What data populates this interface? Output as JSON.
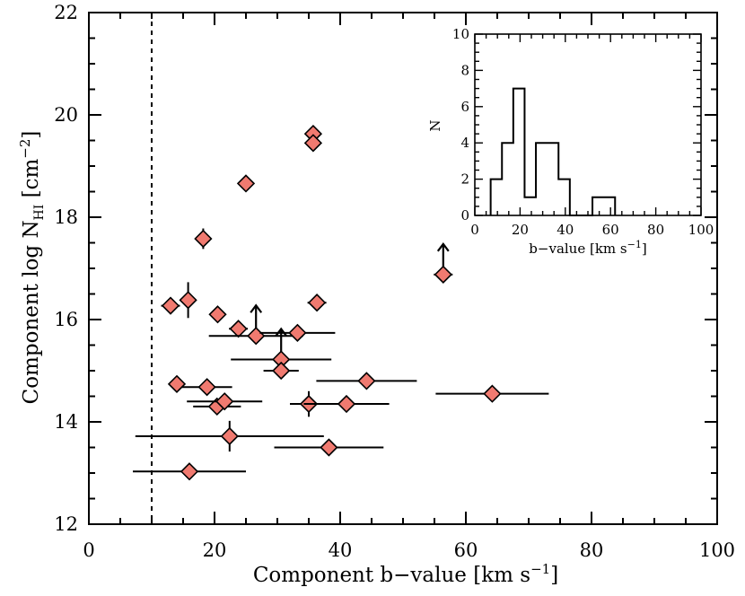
{
  "chart_data": [
    {
      "type": "scatter",
      "name": "main",
      "xlabel": "Component b−value  [km s",
      "xlabel_unit_sup": "−1",
      "xlabel_suffix": "]",
      "ylabel": "Component log N",
      "ylabel_sub": "HI",
      "ylabel_unit": " [cm",
      "ylabel_sup": "−2",
      "ylabel_suffix": "]",
      "xlim": [
        0,
        100
      ],
      "ylim": [
        12,
        22
      ],
      "xticks": [
        0,
        20,
        40,
        60,
        80,
        100
      ],
      "yticks": [
        12,
        14,
        16,
        18,
        20,
        22
      ],
      "xtick_labels": [
        "0",
        "20",
        "40",
        "60",
        "80",
        "100"
      ],
      "ytick_labels": [
        "12",
        "14",
        "16",
        "18",
        "20",
        "22"
      ],
      "reference_line_x": 10,
      "marker_color": "#f07a70",
      "points": [
        {
          "b": 13.0,
          "logN": 16.27,
          "b_err": 1.5,
          "n_err": 0.0,
          "lower_limit": false
        },
        {
          "b": 15.8,
          "logN": 16.38,
          "b_err": 1.0,
          "n_err": 0.35,
          "lower_limit": false
        },
        {
          "b": 18.2,
          "logN": 17.58,
          "b_err": 0.0,
          "n_err": 0.2,
          "lower_limit": false
        },
        {
          "b": 20.5,
          "logN": 16.1,
          "b_err": 1.0,
          "n_err": 0.0,
          "lower_limit": false
        },
        {
          "b": 25.0,
          "logN": 18.66,
          "b_err": 0.8,
          "n_err": 0.0,
          "lower_limit": false
        },
        {
          "b": 23.8,
          "logN": 15.82,
          "b_err": 1.5,
          "n_err": 0.0,
          "lower_limit": false
        },
        {
          "b": 26.6,
          "logN": 15.68,
          "b_err": 7.5,
          "n_err": 0.0,
          "lower_limit": true
        },
        {
          "b": 30.6,
          "logN": 15.22,
          "b_err": 8.0,
          "n_err": 0.0,
          "lower_limit": true
        },
        {
          "b": 30.6,
          "logN": 15.0,
          "b_err": 2.8,
          "n_err": 0.0,
          "lower_limit": false
        },
        {
          "b": 33.2,
          "logN": 15.74,
          "b_err": 6.0,
          "n_err": 0.0,
          "lower_limit": false
        },
        {
          "b": 35.7,
          "logN": 19.63,
          "b_err": 0.0,
          "n_err": 0.0,
          "lower_limit": false
        },
        {
          "b": 35.7,
          "logN": 19.45,
          "b_err": 0.0,
          "n_err": 0.0,
          "lower_limit": false
        },
        {
          "b": 36.3,
          "logN": 16.33,
          "b_err": 1.5,
          "n_err": 0.0,
          "lower_limit": false
        },
        {
          "b": 14.0,
          "logN": 14.74,
          "b_err": 0.8,
          "n_err": 0.0,
          "lower_limit": false
        },
        {
          "b": 18.8,
          "logN": 14.68,
          "b_err": 4.0,
          "n_err": 0.0,
          "lower_limit": false
        },
        {
          "b": 20.4,
          "logN": 14.3,
          "b_err": 3.8,
          "n_err": 0.0,
          "lower_limit": false
        },
        {
          "b": 21.6,
          "logN": 14.4,
          "b_err": 6.0,
          "n_err": 0.0,
          "lower_limit": false
        },
        {
          "b": 22.4,
          "logN": 13.72,
          "b_err": 15.0,
          "n_err": 0.3,
          "lower_limit": false
        },
        {
          "b": 16.0,
          "logN": 13.03,
          "b_err": 9.0,
          "n_err": 0.0,
          "lower_limit": false
        },
        {
          "b": 35.0,
          "logN": 14.35,
          "b_err": 3.0,
          "n_err": 0.25,
          "lower_limit": false
        },
        {
          "b": 41.0,
          "logN": 14.35,
          "b_err": 6.8,
          "n_err": 0.0,
          "lower_limit": false
        },
        {
          "b": 44.2,
          "logN": 14.8,
          "b_err": 8.0,
          "n_err": 0.0,
          "lower_limit": false
        },
        {
          "b": 38.2,
          "logN": 13.5,
          "b_err": 8.7,
          "n_err": 0.0,
          "lower_limit": false
        },
        {
          "b": 56.4,
          "logN": 16.88,
          "b_err": 1.5,
          "n_err": 0.0,
          "lower_limit": true
        },
        {
          "b": 64.2,
          "logN": 14.55,
          "b_err": 9.0,
          "n_err": 0.0,
          "lower_limit": false
        }
      ]
    },
    {
      "type": "histogram",
      "name": "inset",
      "xlabel": "b−value [km s",
      "xlabel_sup": "−1",
      "xlabel_suffix": "]",
      "ylabel": "N",
      "xlim": [
        0,
        100
      ],
      "ylim": [
        0,
        10
      ],
      "xticks": [
        0,
        20,
        40,
        60,
        80,
        100
      ],
      "yticks": [
        0,
        2,
        4,
        6,
        8,
        10
      ],
      "xtick_labels": [
        "0",
        "20",
        "40",
        "60",
        "80",
        "100"
      ],
      "ytick_labels": [
        "0",
        "2",
        "4",
        "6",
        "8",
        "10"
      ],
      "bin_edges": [
        7,
        12,
        17,
        22,
        27,
        32,
        37,
        42,
        47,
        52,
        57,
        62
      ],
      "counts": [
        2,
        4,
        7,
        1,
        4,
        4,
        2,
        0,
        0,
        1,
        1
      ]
    }
  ]
}
